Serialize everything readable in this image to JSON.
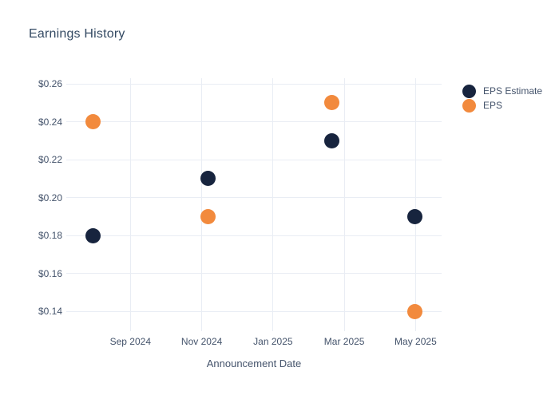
{
  "page": {
    "background_color": "#ffffff"
  },
  "chart": {
    "title": "Earnings History",
    "x_axis_title": "Announcement Date",
    "legend": {
      "items": [
        {
          "label": "EPS Estimate",
          "color": "#17243e",
          "icon": "circle-marker-icon"
        },
        {
          "label": "EPS",
          "color": "#f28a3d",
          "icon": "circle-marker-icon"
        }
      ]
    }
  },
  "chart_data": {
    "type": "scatter",
    "title": "Earnings History",
    "xlabel": "Announcement Date",
    "ylabel": "",
    "grid": true,
    "legend_position": "right",
    "y_ticks": [
      0.26,
      0.24,
      0.22,
      0.2,
      0.18,
      0.16,
      0.14
    ],
    "y_tick_labels": [
      "$0.26",
      "$0.24",
      "$0.22",
      "$0.20",
      "$0.18",
      "$0.16",
      "$0.14"
    ],
    "ylim": [
      0.1295,
      0.263
    ],
    "x_tick_labels": [
      "Sep 2024",
      "Nov 2024",
      "Jan 2025",
      "Mar 2025",
      "May 2025"
    ],
    "x_tick_positions_months": [
      2,
      4,
      6,
      8,
      10
    ],
    "xlim_months": [
      0.2,
      10.73
    ],
    "x_month_origin": "2024-07-01",
    "announcement_dates_estimated": [
      "2024-08-01",
      "2024-11-06",
      "2025-02-19",
      "2025-04-30"
    ],
    "x_months": [
      0.95,
      4.17,
      7.65,
      9.97
    ],
    "series": [
      {
        "name": "EPS Estimate",
        "color": "#17243e",
        "values": [
          0.18,
          0.21,
          0.23,
          0.19
        ]
      },
      {
        "name": "EPS",
        "color": "#f28a3d",
        "values": [
          0.24,
          0.19,
          0.25,
          0.14
        ]
      }
    ]
  }
}
